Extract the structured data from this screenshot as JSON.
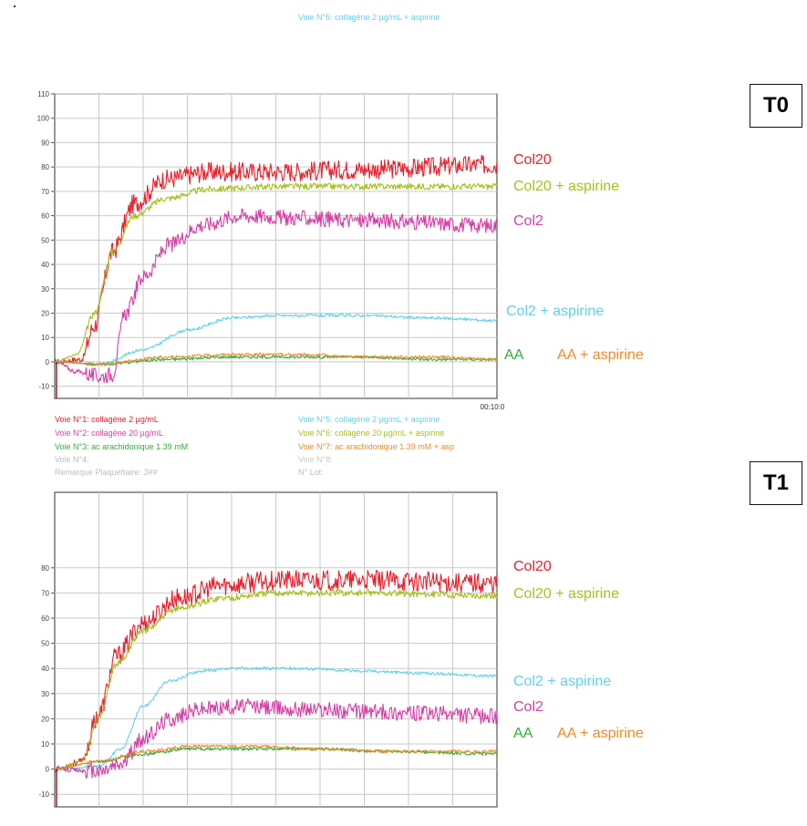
{
  "colors": {
    "col20": "#e8202c",
    "col20_asp": "#a6c01a",
    "col2": "#d63fa5",
    "col2_asp": "#5fd0ec",
    "aa": "#2fae3a",
    "aa_asp": "#f08a2a"
  },
  "header_top": {
    "voie5": "Voie N°5: collagène 2 µg/mL + aspirine"
  },
  "legend_mid": {
    "voie1": "Voie N°1: collagène 2 µg/mL",
    "voie2": "Voie N°2: collagène 20 µg/mL",
    "voie3": "Voie N°3: ac arachidonique 1.39 mM",
    "voie4": "Voie N°4:",
    "voie5": "Voie N°5: collagène 2 µg/mL + aspirine",
    "voie6": "Voie N°6: collagène 20 µg/mL + aspirine",
    "voie7": "Voie N°7: ac arachidonique 1.39 mM + asp",
    "voie8": "Voie N°8:",
    "remarque": "Remarque Plaquettaire: 3##",
    "lot": "N° Lot:"
  },
  "panels": {
    "t0": {
      "box_label": "T0",
      "series_labels": {
        "col20": "Col20",
        "col20_asp": "Col20 + aspirine",
        "col2": "Col2",
        "col2_asp": "Col2 + aspirine",
        "aa": "AA",
        "aa_asp": "AA + aspirine"
      },
      "time_end_label": "00:10:0"
    },
    "t1": {
      "box_label": "T1",
      "series_labels": {
        "col20": "Col20",
        "col20_asp": "Col20 + aspirine",
        "col2_asp": "Col2 + aspirine",
        "col2": "Col2",
        "aa": "AA",
        "aa_asp": "AA + aspirine"
      }
    }
  },
  "chart_data": [
    {
      "type": "line",
      "title": "T0",
      "ylim": [
        -15,
        110
      ],
      "yticks": [
        110,
        100,
        90,
        80,
        70,
        60,
        50,
        40,
        30,
        20,
        10,
        0,
        -10
      ],
      "xlim": [
        0,
        10
      ],
      "grid": true,
      "series": [
        {
          "name": "Col20",
          "x": [
            0,
            0.6,
            0.9,
            1.3,
            1.8,
            2.5,
            3.5,
            5,
            7,
            10
          ],
          "values": [
            0,
            1,
            15,
            45,
            65,
            75,
            78,
            78,
            79,
            81
          ]
        },
        {
          "name": "Col20 + aspirine",
          "x": [
            0,
            0.5,
            0.9,
            1.3,
            1.8,
            2.5,
            3.5,
            5,
            7,
            10
          ],
          "values": [
            0,
            3,
            20,
            45,
            60,
            67,
            71,
            72,
            72,
            72
          ]
        },
        {
          "name": "Col2",
          "x": [
            0,
            0.5,
            1.0,
            1.3,
            1.6,
            2.0,
            2.6,
            3.3,
            4.2,
            5.5,
            7,
            10
          ],
          "values": [
            0,
            -4,
            -6,
            -5,
            20,
            35,
            48,
            56,
            60,
            59,
            58,
            56
          ]
        },
        {
          "name": "Col2 + aspirine",
          "x": [
            0,
            1.0,
            2.0,
            3.0,
            4.0,
            5.0,
            7.0,
            8.5,
            10
          ],
          "values": [
            0,
            -1,
            5,
            13,
            18,
            19,
            19,
            18,
            17
          ]
        },
        {
          "name": "AA",
          "x": [
            0,
            1.0,
            2.5,
            4.0,
            5.5,
            7.0,
            8.5,
            10
          ],
          "values": [
            0,
            -1,
            1,
            2,
            2,
            2,
            1,
            1
          ]
        },
        {
          "name": "AA + aspirine",
          "x": [
            0,
            1.0,
            2.5,
            4.0,
            5.5,
            7.0,
            8.5,
            10
          ],
          "values": [
            0,
            -1,
            2,
            3,
            3,
            2,
            2,
            1
          ]
        }
      ]
    },
    {
      "type": "line",
      "title": "T1",
      "ylim": [
        -15,
        110
      ],
      "yticks": [
        80,
        70,
        60,
        50,
        40,
        30,
        20,
        10,
        0,
        -10
      ],
      "xlim": [
        0,
        10
      ],
      "grid": true,
      "series": [
        {
          "name": "Col20",
          "x": [
            0,
            0.6,
            1.0,
            1.4,
            2.0,
            2.8,
            3.8,
            5,
            7,
            10
          ],
          "values": [
            0,
            3,
            22,
            45,
            58,
            68,
            73,
            75,
            75,
            74
          ]
        },
        {
          "name": "Col20 + aspirine",
          "x": [
            0,
            0.6,
            1.0,
            1.4,
            2.0,
            2.8,
            3.8,
            5,
            7,
            10
          ],
          "values": [
            0,
            3,
            20,
            42,
            55,
            64,
            68,
            70,
            70,
            69
          ]
        },
        {
          "name": "Col2 + aspirine",
          "x": [
            0,
            1.0,
            1.5,
            2.0,
            2.6,
            3.3,
            4.2,
            5.5,
            7,
            8.5,
            10
          ],
          "values": [
            0,
            1,
            8,
            25,
            35,
            39,
            40,
            40,
            39,
            38,
            37
          ]
        },
        {
          "name": "Col2",
          "x": [
            0,
            1.0,
            1.5,
            2.0,
            2.6,
            3.3,
            4.2,
            5.5,
            7,
            8.5,
            10
          ],
          "values": [
            0,
            -1,
            2,
            12,
            20,
            24,
            25,
            24,
            23,
            22,
            21
          ]
        },
        {
          "name": "AA",
          "x": [
            0,
            1.0,
            2.0,
            3.0,
            4.5,
            6.0,
            7.5,
            10
          ],
          "values": [
            0,
            3,
            6,
            8,
            8,
            8,
            7,
            6
          ]
        },
        {
          "name": "AA + aspirine",
          "x": [
            0,
            1.0,
            2.0,
            3.0,
            4.5,
            6.0,
            7.5,
            10
          ],
          "values": [
            0,
            3,
            7,
            9,
            9,
            8,
            7,
            7
          ]
        }
      ]
    }
  ]
}
